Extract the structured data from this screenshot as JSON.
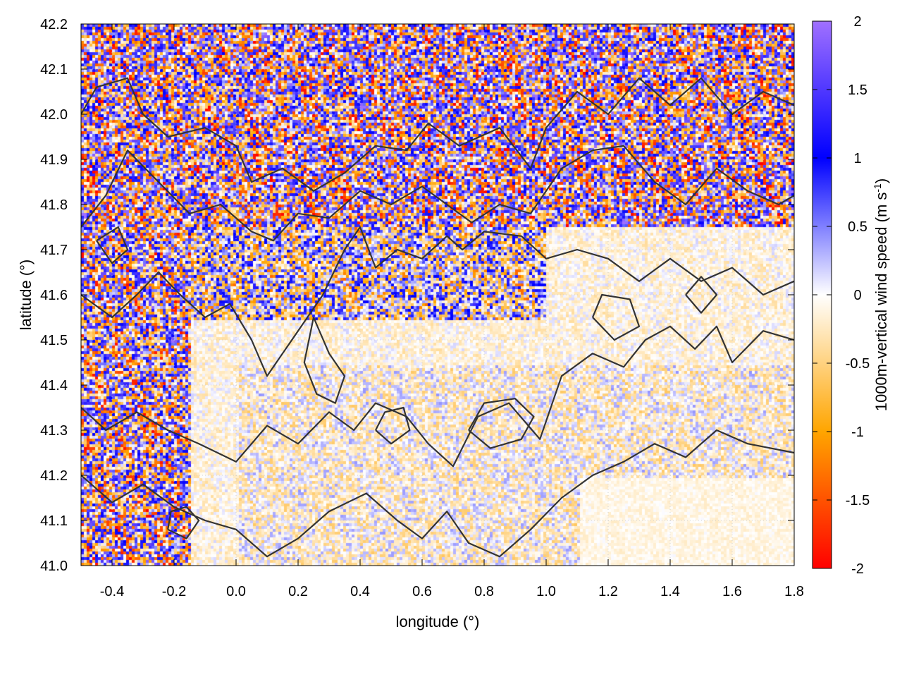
{
  "chart_data": {
    "type": "heatmap",
    "title": "",
    "xlabel": "longitude (°)",
    "ylabel": "latitude (°)",
    "colorbar_label": "1000m-vertical wind speed (m s",
    "colorbar_label_sup": "-1",
    "colorbar_label_close": ")",
    "xlim": [
      -0.5,
      1.8
    ],
    "ylim": [
      41.0,
      42.2
    ],
    "zlim": [
      -2,
      2
    ],
    "x_ticks": [
      -0.4,
      -0.2,
      0.0,
      0.2,
      0.4,
      0.6,
      0.8,
      1.0,
      1.2,
      1.4,
      1.6,
      1.8
    ],
    "x_tick_labels": [
      "-0.4",
      "-0.2",
      "0.0",
      "0.2",
      "0.4",
      "0.6",
      "0.8",
      "1.0",
      "1.2",
      "1.4",
      "1.6",
      "1.8"
    ],
    "y_ticks": [
      41.0,
      41.1,
      41.2,
      41.3,
      41.4,
      41.5,
      41.6,
      41.7,
      41.8,
      41.9,
      42.0,
      42.1,
      42.2
    ],
    "y_tick_labels": [
      "41.0",
      "41.1",
      "41.2",
      "41.3",
      "41.4",
      "41.5",
      "41.6",
      "41.7",
      "41.8",
      "41.9",
      "42.0",
      "42.1",
      "42.2"
    ],
    "colorbar_ticks": [
      2,
      1.5,
      1,
      0.5,
      0,
      -0.5,
      -1,
      -1.5,
      -2
    ],
    "colorbar_tick_labels": [
      "2",
      "1.5",
      "1",
      "0.5",
      "0",
      "-0.5",
      "-1",
      "-1.5",
      "-2"
    ],
    "colormap": [
      {
        "value": -2.0,
        "color": "#ff0000"
      },
      {
        "value": -1.0,
        "color": "#ffa500"
      },
      {
        "value": 0.0,
        "color": "#ffffff"
      },
      {
        "value": 1.0,
        "color": "#0000ff"
      },
      {
        "value": 2.0,
        "color": "#a070ff"
      }
    ],
    "grid": true,
    "contour_color": "#333333",
    "contours": [
      [
        [
          -0.5,
          42.0
        ],
        [
          -0.45,
          42.06
        ],
        [
          -0.35,
          42.08
        ],
        [
          -0.3,
          42.0
        ],
        [
          -0.22,
          41.95
        ],
        [
          -0.1,
          41.97
        ],
        [
          0.0,
          41.93
        ],
        [
          0.05,
          41.85
        ],
        [
          0.15,
          41.88
        ],
        [
          0.25,
          41.83
        ],
        [
          0.35,
          41.87
        ],
        [
          0.45,
          41.93
        ],
        [
          0.55,
          41.92
        ],
        [
          0.62,
          41.98
        ],
        [
          0.72,
          41.93
        ],
        [
          0.85,
          41.97
        ],
        [
          0.95,
          41.88
        ],
        [
          1.0,
          41.97
        ],
        [
          1.1,
          42.05
        ],
        [
          1.2,
          42.0
        ],
        [
          1.3,
          42.08
        ],
        [
          1.4,
          42.02
        ],
        [
          1.5,
          42.08
        ],
        [
          1.6,
          42.0
        ],
        [
          1.7,
          42.05
        ],
        [
          1.8,
          42.02
        ]
      ],
      [
        [
          -0.5,
          41.75
        ],
        [
          -0.42,
          41.82
        ],
        [
          -0.35,
          41.92
        ],
        [
          -0.25,
          41.85
        ],
        [
          -0.15,
          41.78
        ],
        [
          -0.05,
          41.8
        ],
        [
          0.05,
          41.74
        ],
        [
          0.12,
          41.72
        ],
        [
          0.2,
          41.78
        ],
        [
          0.3,
          41.77
        ],
        [
          0.4,
          41.83
        ],
        [
          0.5,
          41.8
        ],
        [
          0.6,
          41.84
        ],
        [
          0.68,
          41.8
        ],
        [
          0.76,
          41.76
        ],
        [
          0.85,
          41.8
        ],
        [
          0.95,
          41.78
        ],
        [
          1.05,
          41.88
        ],
        [
          1.15,
          41.92
        ],
        [
          1.25,
          41.93
        ],
        [
          1.35,
          41.85
        ],
        [
          1.45,
          41.8
        ],
        [
          1.55,
          41.88
        ],
        [
          1.65,
          41.83
        ],
        [
          1.75,
          41.8
        ],
        [
          1.8,
          41.82
        ]
      ],
      [
        [
          -0.5,
          41.6
        ],
        [
          -0.4,
          41.55
        ],
        [
          -0.32,
          41.6
        ],
        [
          -0.25,
          41.65
        ],
        [
          -0.18,
          41.6
        ],
        [
          -0.1,
          41.55
        ],
        [
          -0.02,
          41.58
        ],
        [
          0.05,
          41.5
        ],
        [
          0.1,
          41.42
        ],
        [
          0.2,
          41.52
        ],
        [
          0.28,
          41.6
        ],
        [
          0.35,
          41.7
        ],
        [
          0.4,
          41.75
        ],
        [
          0.45,
          41.66
        ],
        [
          0.52,
          41.7
        ],
        [
          0.6,
          41.68
        ],
        [
          0.68,
          41.73
        ],
        [
          0.73,
          41.7
        ],
        [
          0.8,
          41.74
        ],
        [
          0.92,
          41.73
        ],
        [
          1.0,
          41.68
        ],
        [
          1.1,
          41.7
        ],
        [
          1.2,
          41.68
        ],
        [
          1.3,
          41.63
        ],
        [
          1.4,
          41.68
        ],
        [
          1.5,
          41.63
        ],
        [
          1.6,
          41.66
        ],
        [
          1.7,
          41.6
        ],
        [
          1.8,
          41.63
        ]
      ],
      [
        [
          -0.5,
          41.35
        ],
        [
          -0.42,
          41.3
        ],
        [
          -0.32,
          41.34
        ],
        [
          -0.22,
          41.3
        ],
        [
          -0.12,
          41.27
        ],
        [
          0.0,
          41.23
        ],
        [
          0.1,
          41.31
        ],
        [
          0.2,
          41.27
        ],
        [
          0.3,
          41.34
        ],
        [
          0.38,
          41.3
        ],
        [
          0.45,
          41.36
        ],
        [
          0.55,
          41.33
        ],
        [
          0.62,
          41.27
        ],
        [
          0.7,
          41.22
        ],
        [
          0.78,
          41.33
        ],
        [
          0.88,
          41.36
        ],
        [
          0.98,
          41.28
        ],
        [
          1.05,
          41.42
        ],
        [
          1.15,
          41.47
        ],
        [
          1.25,
          41.44
        ],
        [
          1.32,
          41.5
        ],
        [
          1.4,
          41.53
        ],
        [
          1.48,
          41.48
        ],
        [
          1.55,
          41.53
        ],
        [
          1.6,
          41.45
        ],
        [
          1.7,
          41.52
        ],
        [
          1.8,
          41.5
        ]
      ],
      [
        [
          -0.5,
          41.2
        ],
        [
          -0.4,
          41.14
        ],
        [
          -0.3,
          41.18
        ],
        [
          -0.2,
          41.13
        ],
        [
          -0.1,
          41.1
        ],
        [
          0.0,
          41.08
        ],
        [
          0.1,
          41.02
        ],
        [
          0.2,
          41.06
        ],
        [
          0.3,
          41.12
        ],
        [
          0.42,
          41.16
        ],
        [
          0.52,
          41.1
        ],
        [
          0.6,
          41.06
        ],
        [
          0.68,
          41.12
        ],
        [
          0.75,
          41.05
        ],
        [
          0.85,
          41.02
        ],
        [
          0.95,
          41.08
        ],
        [
          1.05,
          41.15
        ],
        [
          1.15,
          41.2
        ],
        [
          1.25,
          41.23
        ],
        [
          1.35,
          41.27
        ],
        [
          1.45,
          41.24
        ],
        [
          1.55,
          41.3
        ],
        [
          1.65,
          41.27
        ],
        [
          1.8,
          41.25
        ]
      ],
      [
        [
          0.25,
          41.55
        ],
        [
          0.3,
          41.47
        ],
        [
          0.35,
          41.42
        ],
        [
          0.32,
          41.36
        ],
        [
          0.26,
          41.38
        ],
        [
          0.22,
          41.45
        ],
        [
          0.25,
          41.55
        ]
      ],
      [
        [
          0.45,
          41.3
        ],
        [
          0.5,
          41.27
        ],
        [
          0.56,
          41.3
        ],
        [
          0.54,
          41.35
        ],
        [
          0.48,
          41.34
        ],
        [
          0.45,
          41.3
        ]
      ],
      [
        [
          0.75,
          41.3
        ],
        [
          0.82,
          41.26
        ],
        [
          0.92,
          41.28
        ],
        [
          0.96,
          41.33
        ],
        [
          0.9,
          41.37
        ],
        [
          0.8,
          41.36
        ],
        [
          0.75,
          41.3
        ]
      ],
      [
        [
          -0.22,
          41.08
        ],
        [
          -0.16,
          41.06
        ],
        [
          -0.12,
          41.1
        ],
        [
          -0.16,
          41.13
        ],
        [
          -0.21,
          41.12
        ],
        [
          -0.22,
          41.08
        ]
      ],
      [
        [
          1.15,
          41.55
        ],
        [
          1.22,
          41.5
        ],
        [
          1.3,
          41.53
        ],
        [
          1.27,
          41.59
        ],
        [
          1.18,
          41.6
        ],
        [
          1.15,
          41.55
        ]
      ],
      [
        [
          -0.45,
          41.72
        ],
        [
          -0.4,
          41.67
        ],
        [
          -0.35,
          41.7
        ],
        [
          -0.38,
          41.75
        ],
        [
          -0.45,
          41.72
        ]
      ],
      [
        [
          1.45,
          41.6
        ],
        [
          1.5,
          41.56
        ],
        [
          1.55,
          41.6
        ],
        [
          1.5,
          41.64
        ],
        [
          1.45,
          41.6
        ]
      ]
    ]
  }
}
